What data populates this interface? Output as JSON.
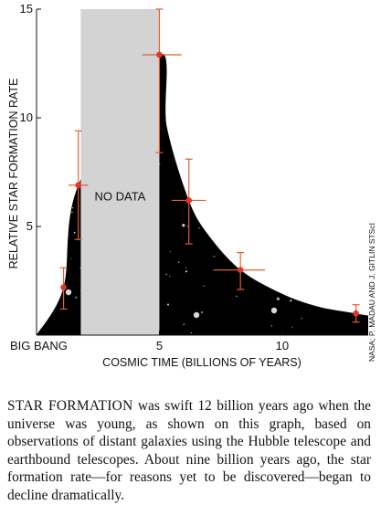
{
  "chart_data": {
    "type": "scatter",
    "ylabel": "RELATIVE STAR FORMATION RATE",
    "xlabel": "COSMIC TIME (BILLIONS OF YEARS)",
    "xlim": [
      0,
      13.5
    ],
    "ylim": [
      0,
      15
    ],
    "x_ticks": [
      5,
      10
    ],
    "x_tick_labels": [
      "5",
      "10"
    ],
    "x_origin_label": "BIG BANG",
    "y_ticks": [
      5,
      10,
      15
    ],
    "y_tick_labels": [
      "5",
      "10",
      "15"
    ],
    "grid": false,
    "no_data_band": {
      "x_start": 1.8,
      "x_end": 5.0,
      "label": "NO DATA"
    },
    "points": [
      {
        "x": 1.1,
        "y": 2.2,
        "y_err": [
          1.2,
          3.1
        ]
      },
      {
        "x": 1.7,
        "y": 6.9,
        "x_err": [
          1.3,
          2.1
        ],
        "y_err": [
          4.4,
          9.4
        ]
      },
      {
        "x": 5.0,
        "y": 12.9,
        "x_err": [
          4.3,
          5.9
        ],
        "y_err": [
          8.4,
          15.0
        ]
      },
      {
        "x": 6.2,
        "y": 6.2,
        "x_err": [
          5.5,
          6.9
        ],
        "y_err": [
          4.2,
          8.1
        ]
      },
      {
        "x": 8.3,
        "y": 3.0,
        "x_err": [
          7.2,
          9.3
        ],
        "y_err": [
          2.1,
          3.8
        ]
      },
      {
        "x": 13.0,
        "y": 1.0,
        "y_err": [
          0.6,
          1.4
        ]
      }
    ],
    "curve": [
      [
        0,
        0
      ],
      [
        1.1,
        2.2
      ],
      [
        1.7,
        6.9
      ],
      [
        5.0,
        12.9
      ],
      [
        5.3,
        9.6
      ],
      [
        6.2,
        6.2
      ],
      [
        7.0,
        4.6
      ],
      [
        8.3,
        3.0
      ],
      [
        10.0,
        1.9
      ],
      [
        11.5,
        1.3
      ],
      [
        13.0,
        1.0
      ],
      [
        13.5,
        0.9
      ]
    ]
  },
  "credit": "NASA; P. MADAU AND J. GITLIN STScI",
  "caption": {
    "lead": "STAR FORMATION",
    "text": " was swift 12 billion years ago when the universe was young, as shown on this graph, based on observations of distant galaxies using the Hubble telescope and earthbound telescopes. About nine billion years ago, the star formation rate—for reasons yet to be discovered—began to decline dramatically."
  },
  "colors": {
    "marker": "#e8332a",
    "errorbar": "#e06030",
    "no_data": "#d3d3d3",
    "sky": "#000000"
  }
}
